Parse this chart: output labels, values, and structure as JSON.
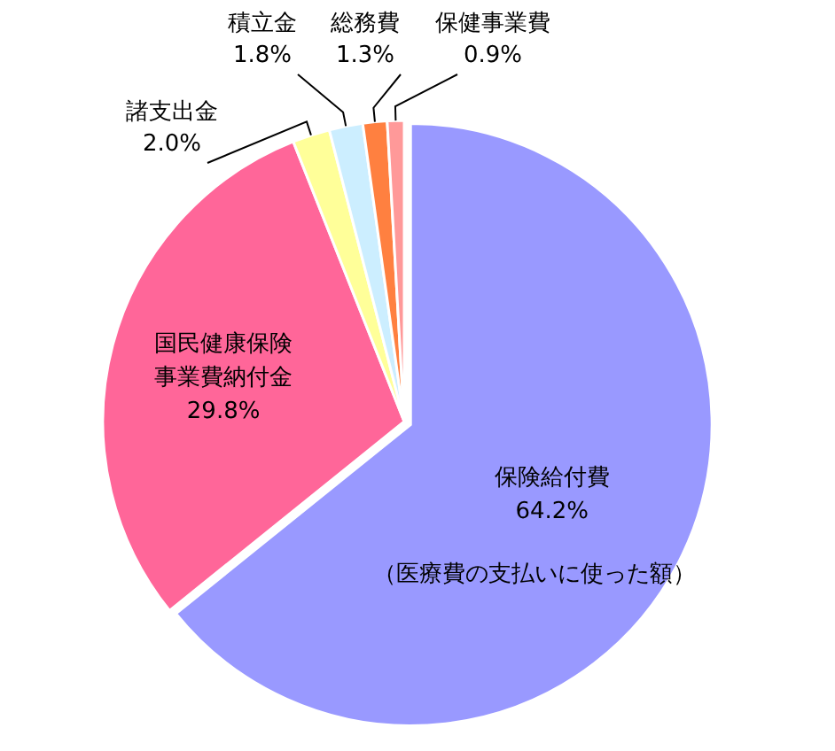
{
  "chart_data": {
    "type": "pie",
    "categories": [
      "保険給付費",
      "国民健康保険事業費納付金",
      "諸支出金",
      "積立金",
      "総務費",
      "保健事業費"
    ],
    "values": [
      64.2,
      29.8,
      2.0,
      1.8,
      1.3,
      0.9
    ],
    "value_labels": [
      "64.2%",
      "29.8%",
      "2.0%",
      "1.8%",
      "1.3%",
      "0.9%"
    ],
    "colors": [
      "#9999ff",
      "#ff6699",
      "#ffff99",
      "#cceeff",
      "#ff8040",
      "#ff9999"
    ],
    "annotations": [
      {
        "text": "（医療費の支払いに使った額）",
        "x": "保険給付費"
      }
    ]
  }
}
